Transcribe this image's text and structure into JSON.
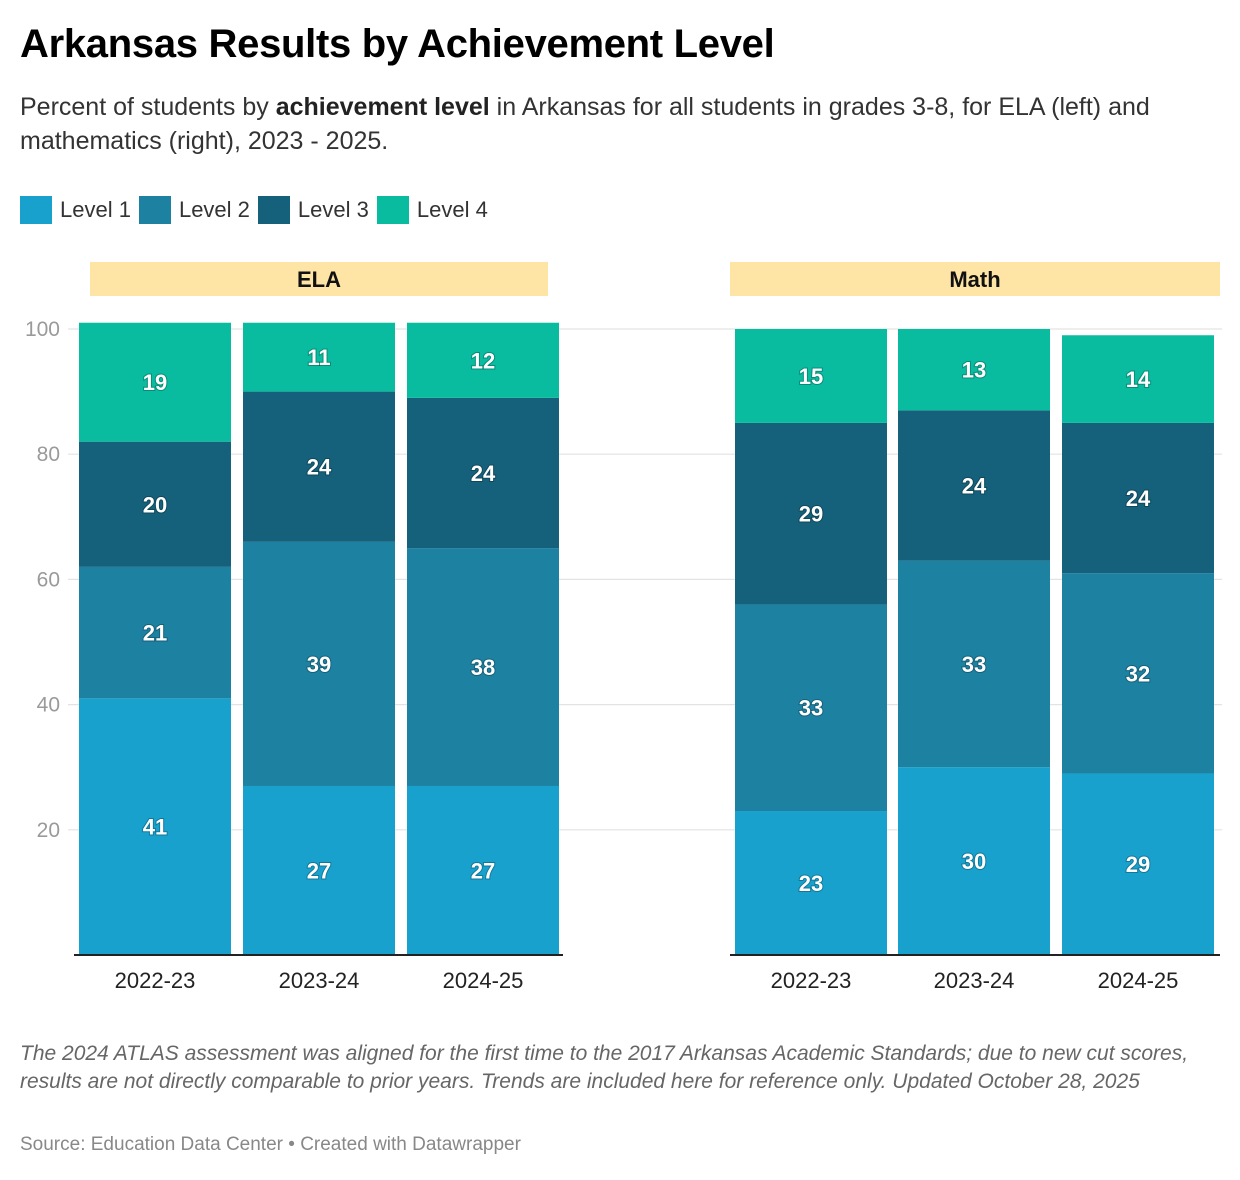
{
  "title": "Arkansas Results by Achievement Level",
  "subtitle": {
    "before": "Percent of students by ",
    "bold": "achievement level",
    "after": " in Arkansas for all students in grades 3-8, for ELA (left) and mathematics (right), 2023 - 2025."
  },
  "legend": [
    {
      "label": "Level 1",
      "color": "#18a1cd"
    },
    {
      "label": "Level 2",
      "color": "#1d81a2"
    },
    {
      "label": "Level 3",
      "color": "#15607a"
    },
    {
      "label": "Level 4",
      "color": "#09bb9f"
    }
  ],
  "chart_data": [
    {
      "type": "bar",
      "stacked": true,
      "title": "ELA",
      "categories": [
        "2022-23",
        "2023-24",
        "2024-25"
      ],
      "series": [
        {
          "name": "Level 1",
          "values": [
            41,
            27,
            27
          ]
        },
        {
          "name": "Level 2",
          "values": [
            21,
            39,
            38
          ]
        },
        {
          "name": "Level 3",
          "values": [
            20,
            24,
            24
          ]
        },
        {
          "name": "Level 4",
          "values": [
            19,
            11,
            12
          ]
        }
      ],
      "ylim": [
        0,
        100
      ],
      "yticks": [
        20,
        40,
        60,
        80,
        100
      ],
      "grid": true
    },
    {
      "type": "bar",
      "stacked": true,
      "title": "Math",
      "categories": [
        "2022-23",
        "2023-24",
        "2024-25"
      ],
      "series": [
        {
          "name": "Level 1",
          "values": [
            23,
            30,
            29
          ]
        },
        {
          "name": "Level 2",
          "values": [
            33,
            33,
            32
          ]
        },
        {
          "name": "Level 3",
          "values": [
            29,
            24,
            24
          ]
        },
        {
          "name": "Level 4",
          "values": [
            15,
            13,
            14
          ]
        }
      ],
      "ylim": [
        0,
        100
      ],
      "yticks": [
        20,
        40,
        60,
        80,
        100
      ],
      "grid": true
    }
  ],
  "panel_header_color": "#fee4a5",
  "notes": "The 2024 ATLAS assessment was aligned for the first time to the 2017 Arkansas Academic Standards; due to new cut scores, results are not directly comparable to prior years. Trends are included here for reference only. Updated October 28, 2025",
  "source": "Source: Education Data Center • Created with Datawrapper"
}
